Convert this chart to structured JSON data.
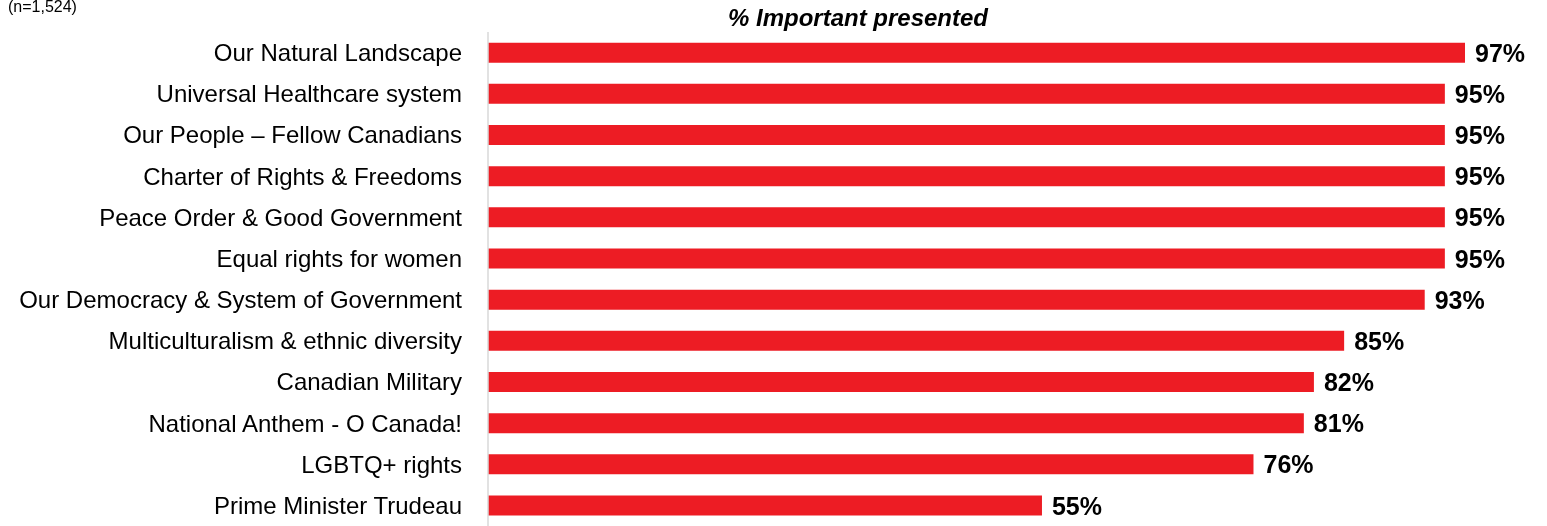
{
  "chart_data": {
    "type": "bar",
    "orientation": "horizontal",
    "title": "% Important presented",
    "annotations": [
      "(n=1,524)"
    ],
    "categories": [
      "Our Natural Landscape",
      "Universal Healthcare system",
      "Our People – Fellow Canadians",
      "Charter of Rights & Freedoms",
      "Peace Order & Good Government",
      "Equal rights for women",
      "Our Democracy & System of Government",
      "Multiculturalism & ethnic diversity",
      "Canadian Military",
      "National Anthem - O Canada!",
      "LGBTQ+ rights",
      "Prime Minister Trudeau"
    ],
    "values": [
      97,
      95,
      95,
      95,
      95,
      95,
      93,
      85,
      82,
      81,
      76,
      55
    ],
    "value_labels": [
      "97%",
      "95%",
      "95%",
      "95%",
      "95%",
      "95%",
      "93%",
      "85%",
      "82%",
      "81%",
      "76%",
      "55%"
    ],
    "color": "#ed1c24"
  }
}
